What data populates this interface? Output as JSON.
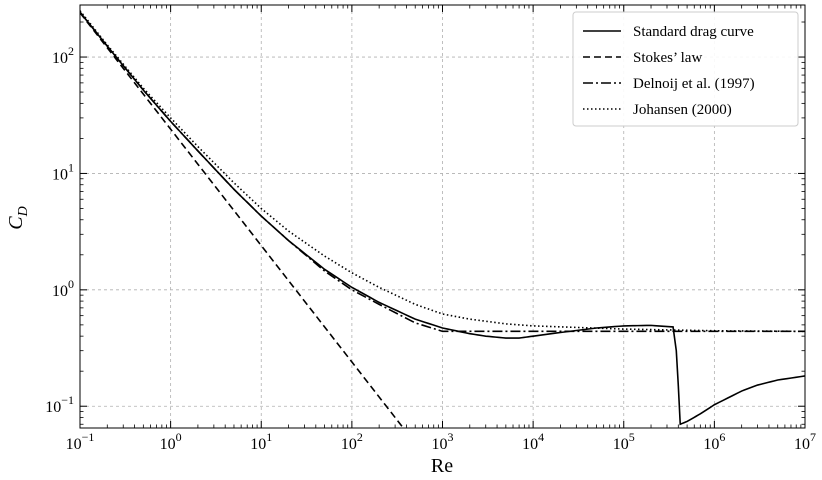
{
  "chart_data": {
    "type": "line",
    "xscale": "log",
    "yscale": "log",
    "xlim": [
      0.1,
      10000000
    ],
    "ylim": [
      0.065,
      280
    ],
    "xlabel": "Re",
    "ylabel_main": "C",
    "ylabel_sub": "D",
    "grid": true,
    "legend_position": "upper-right",
    "x_ticks": [
      {
        "value": 0.1,
        "base": "10",
        "exp": "−1"
      },
      {
        "value": 1,
        "base": "10",
        "exp": "0"
      },
      {
        "value": 10,
        "base": "10",
        "exp": "1"
      },
      {
        "value": 100,
        "base": "10",
        "exp": "2"
      },
      {
        "value": 1000,
        "base": "10",
        "exp": "3"
      },
      {
        "value": 10000,
        "base": "10",
        "exp": "4"
      },
      {
        "value": 100000,
        "base": "10",
        "exp": "5"
      },
      {
        "value": 1000000,
        "base": "10",
        "exp": "6"
      },
      {
        "value": 10000000,
        "base": "10",
        "exp": "7"
      }
    ],
    "y_ticks": [
      {
        "value": 0.1,
        "base": "10",
        "exp": "−1"
      },
      {
        "value": 1,
        "base": "10",
        "exp": "0"
      },
      {
        "value": 10,
        "base": "10",
        "exp": "1"
      },
      {
        "value": 100,
        "base": "10",
        "exp": "2"
      }
    ],
    "series": [
      {
        "name": "Standard drag curve",
        "dash": "",
        "points": [
          [
            0.1,
            243
          ],
          [
            0.2,
            124
          ],
          [
            0.5,
            52
          ],
          [
            1,
            28
          ],
          [
            2,
            15.6
          ],
          [
            5,
            7.3
          ],
          [
            10,
            4.3
          ],
          [
            20,
            2.65
          ],
          [
            50,
            1.5
          ],
          [
            100,
            1.05
          ],
          [
            200,
            0.78
          ],
          [
            500,
            0.56
          ],
          [
            1000,
            0.47
          ],
          [
            2000,
            0.42
          ],
          [
            3000,
            0.4
          ],
          [
            5000,
            0.385
          ],
          [
            7000,
            0.385
          ],
          [
            10000,
            0.4
          ],
          [
            20000,
            0.43
          ],
          [
            50000,
            0.47
          ],
          [
            100000,
            0.49
          ],
          [
            200000,
            0.495
          ],
          [
            350000,
            0.48
          ],
          [
            380000,
            0.3
          ],
          [
            400000,
            0.15
          ],
          [
            420000,
            0.07
          ],
          [
            500000,
            0.074
          ],
          [
            700000,
            0.086
          ],
          [
            1000000,
            0.103
          ],
          [
            2000000,
            0.135
          ],
          [
            3000000,
            0.152
          ],
          [
            5000000,
            0.168
          ],
          [
            10000000,
            0.182
          ]
        ]
      },
      {
        "name": "Stokes’ law",
        "dash": "7,4",
        "points": [
          [
            0.1,
            240
          ],
          [
            400,
            0.06
          ]
        ]
      },
      {
        "name": "Delnoij et al. (1997)",
        "dash": "10,3,2,3",
        "points": [
          [
            0.1,
            243
          ],
          [
            0.2,
            124
          ],
          [
            0.5,
            52
          ],
          [
            1,
            28
          ],
          [
            2,
            15.6
          ],
          [
            5,
            7.3
          ],
          [
            10,
            4.3
          ],
          [
            20,
            2.65
          ],
          [
            50,
            1.45
          ],
          [
            100,
            1.0
          ],
          [
            200,
            0.75
          ],
          [
            500,
            0.52
          ],
          [
            1000,
            0.44
          ],
          [
            10000000,
            0.44
          ]
        ]
      },
      {
        "name": "Johansen (2000)",
        "dash": "1.5,2.5",
        "points": [
          [
            0.1,
            250
          ],
          [
            0.2,
            127
          ],
          [
            0.5,
            54
          ],
          [
            1,
            30
          ],
          [
            2,
            17
          ],
          [
            5,
            8.3
          ],
          [
            10,
            5.0
          ],
          [
            20,
            3.2
          ],
          [
            50,
            1.95
          ],
          [
            100,
            1.4
          ],
          [
            200,
            1.05
          ],
          [
            500,
            0.75
          ],
          [
            1000,
            0.62
          ],
          [
            2000,
            0.56
          ],
          [
            5000,
            0.51
          ],
          [
            10000,
            0.49
          ],
          [
            100000,
            0.46
          ],
          [
            1000000,
            0.445
          ],
          [
            10000000,
            0.44
          ]
        ]
      }
    ]
  }
}
